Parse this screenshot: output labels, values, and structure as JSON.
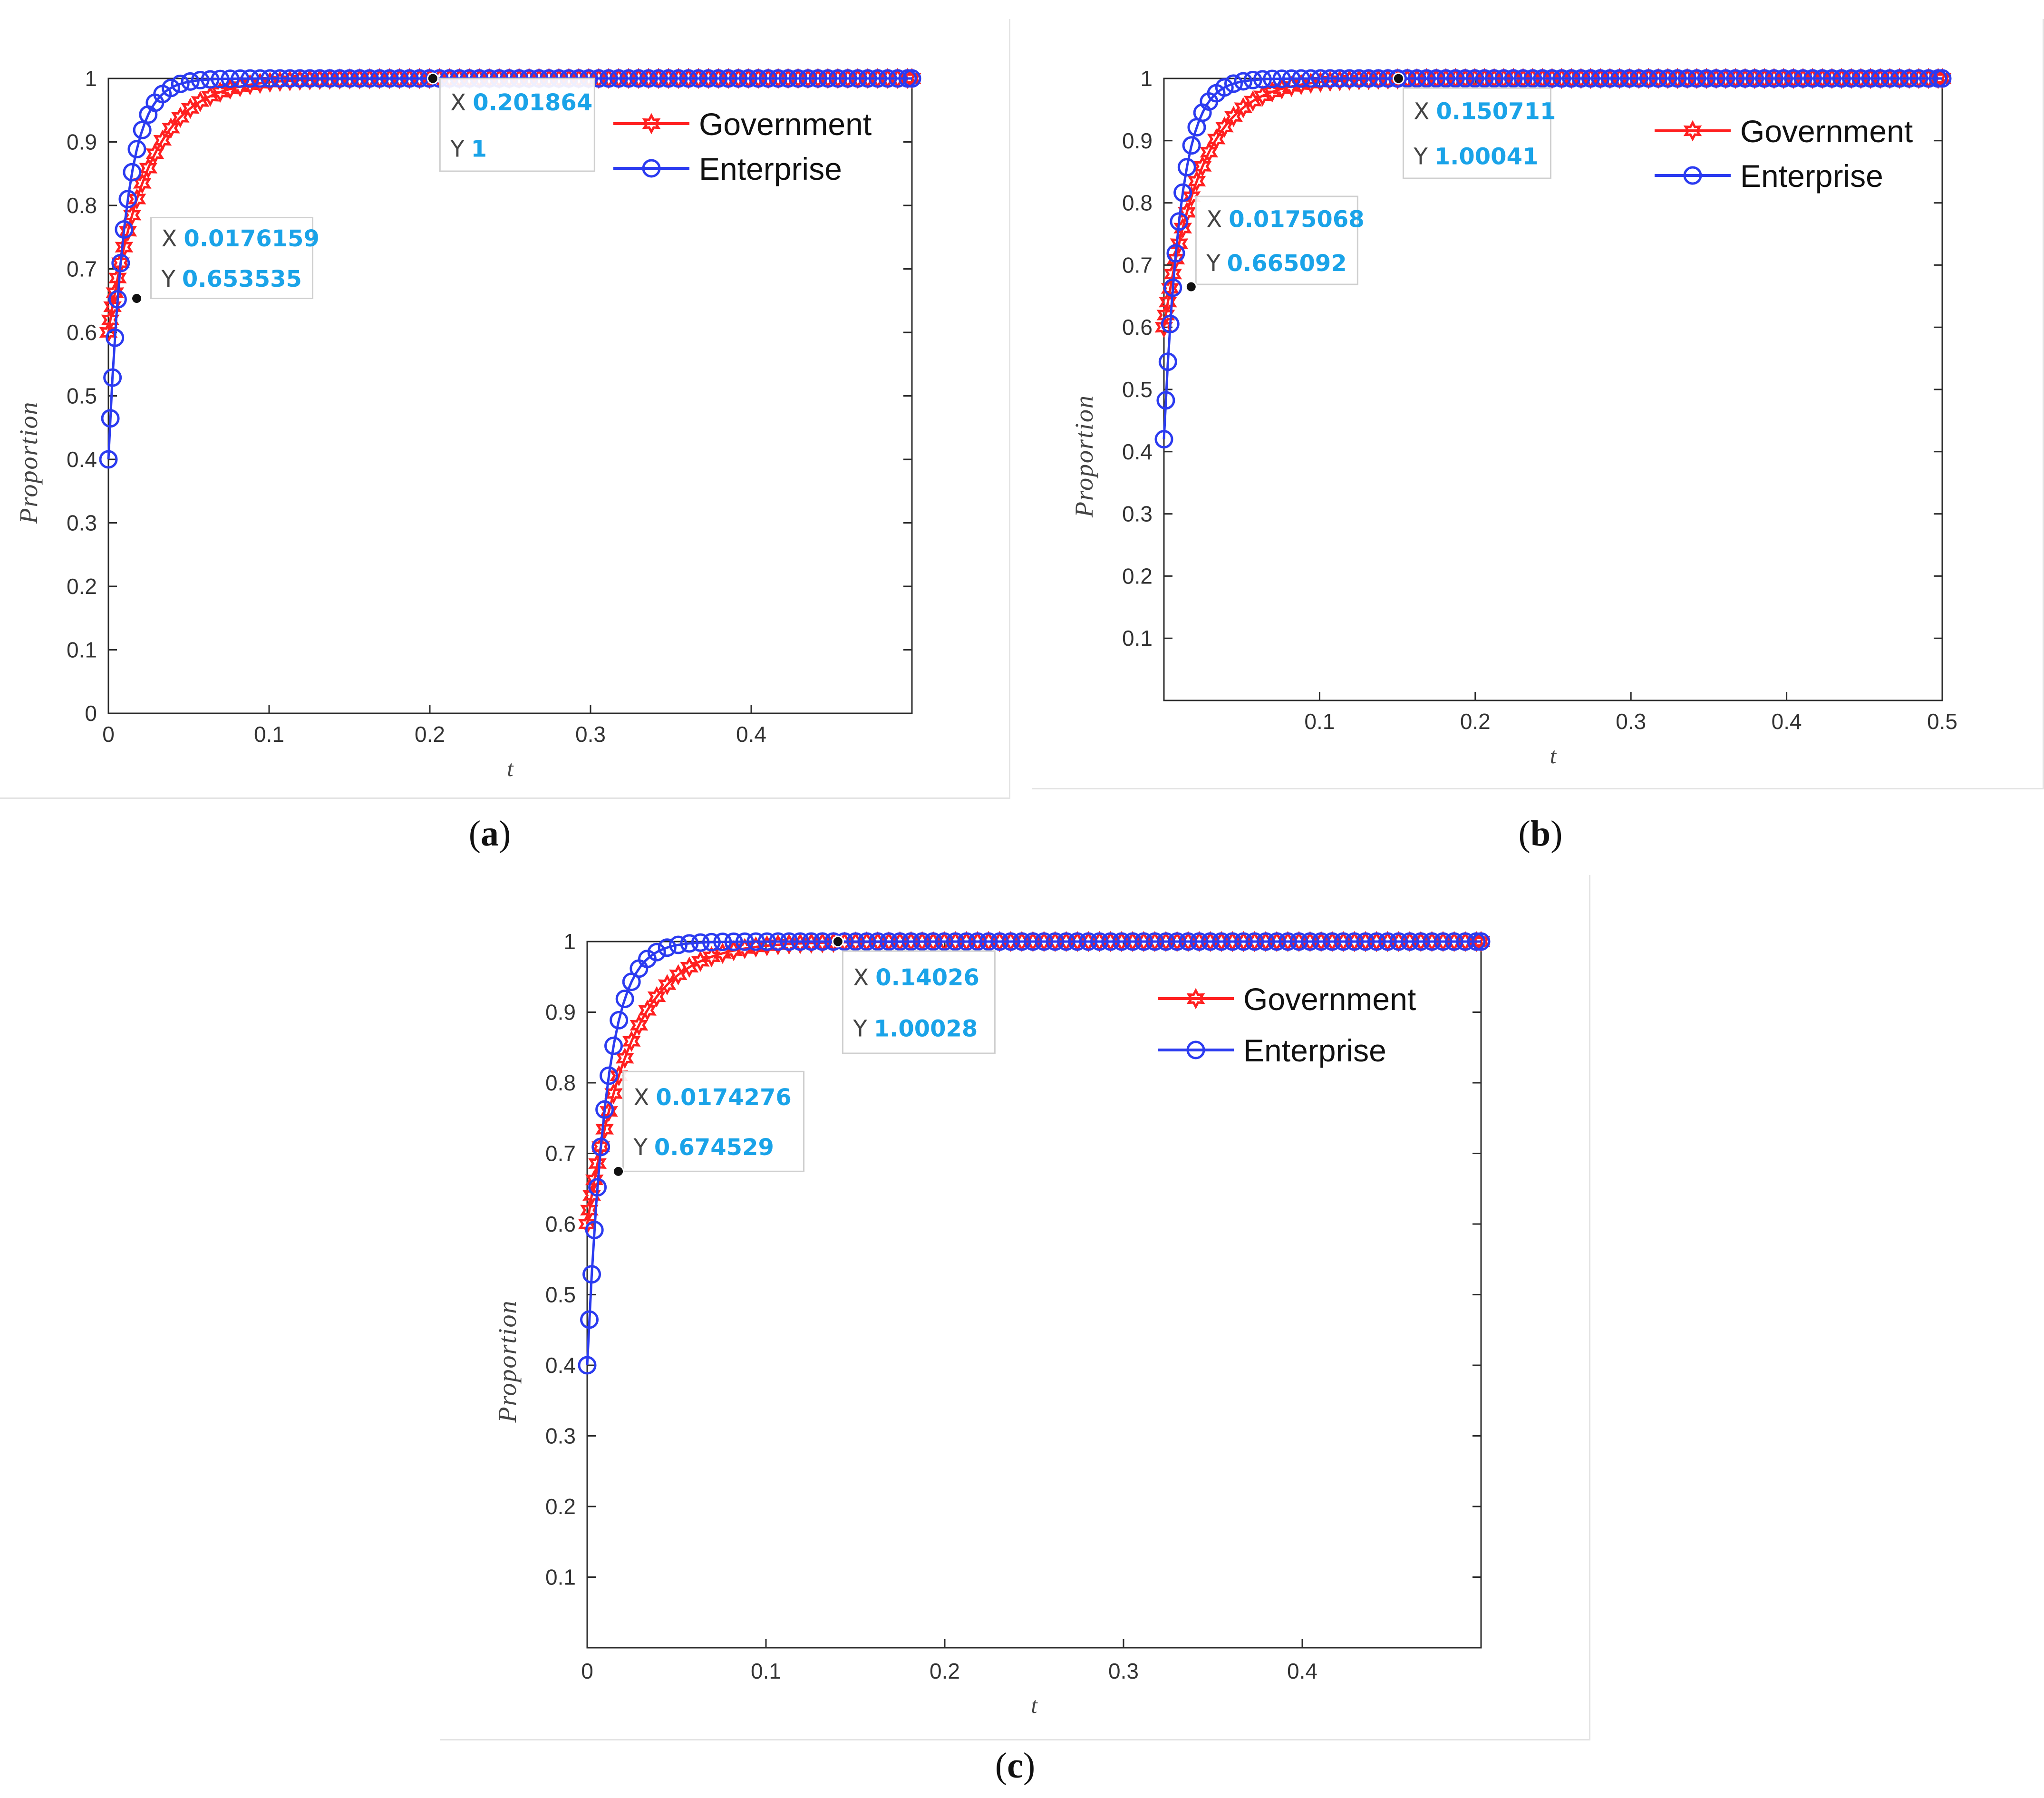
{
  "panels": [
    {
      "id": "a",
      "caption": "a",
      "chart_data": {
        "type": "line",
        "xlabel": "t",
        "ylabel": "Proportion",
        "xlim": [
          0,
          0.5
        ],
        "ylim": [
          0,
          1
        ],
        "xticks": [
          "0",
          "0.1",
          "0.2",
          "0.3",
          "0.4"
        ],
        "yticks": [
          "0",
          "0.1",
          "0.2",
          "0.3",
          "0.4",
          "0.5",
          "0.6",
          "0.7",
          "0.8",
          "0.9",
          "1"
        ],
        "legend_position": "top-right",
        "series": [
          {
            "name": "Government",
            "color": "#ff2020",
            "marker": "hexagram",
            "y0": 0.6,
            "rate": 42
          },
          {
            "name": "Enterprise",
            "color": "#2b3bf0",
            "marker": "circle",
            "y0": 0.4,
            "rate": 95
          }
        ],
        "datatips": [
          {
            "x_label": "X",
            "x": "0.0176159",
            "y_label": "Y",
            "y": "0.653535",
            "px": 0.0176159,
            "py": 0.653535
          },
          {
            "x_label": "X",
            "x": "0.201864",
            "y_label": "Y",
            "y": "1",
            "px": 0.201864,
            "py": 1
          }
        ]
      }
    },
    {
      "id": "b",
      "caption": "b",
      "chart_data": {
        "type": "line",
        "xlabel": "t",
        "ylabel": "Proportion",
        "xlim": [
          0,
          0.5
        ],
        "ylim": [
          0,
          1
        ],
        "xticks": [
          "0.1",
          "0.2",
          "0.3",
          "0.4",
          "0.5"
        ],
        "yticks": [
          "0.1",
          "0.2",
          "0.3",
          "0.4",
          "0.5",
          "0.6",
          "0.7",
          "0.8",
          "0.9",
          "1"
        ],
        "legend_position": "top-right",
        "series": [
          {
            "name": "Government",
            "color": "#ff2020",
            "marker": "hexagram",
            "y0": 0.6,
            "rate": 42
          },
          {
            "name": "Enterprise",
            "color": "#2b3bf0",
            "marker": "circle",
            "y0": 0.42,
            "rate": 95
          }
        ],
        "datatips": [
          {
            "x_label": "X",
            "x": "0.0175068",
            "y_label": "Y",
            "y": "0.665092",
            "px": 0.0175068,
            "py": 0.665092
          },
          {
            "x_label": "X",
            "x": "0.150711",
            "y_label": "Y",
            "y": "1.00041",
            "px": 0.150711,
            "py": 1.0
          }
        ]
      }
    },
    {
      "id": "c",
      "caption": "c",
      "chart_data": {
        "type": "line",
        "xlabel": "t",
        "ylabel": "Proportion",
        "xlim": [
          0,
          0.5
        ],
        "ylim": [
          0,
          1
        ],
        "xticks": [
          "0",
          "0.1",
          "0.2",
          "0.3",
          "0.4"
        ],
        "yticks": [
          "0.1",
          "0.2",
          "0.3",
          "0.4",
          "0.5",
          "0.6",
          "0.7",
          "0.8",
          "0.9",
          "1"
        ],
        "legend_position": "top-right",
        "series": [
          {
            "name": "Government",
            "color": "#ff2020",
            "marker": "hexagram",
            "y0": 0.6,
            "rate": 42
          },
          {
            "name": "Enterprise",
            "color": "#2b3bf0",
            "marker": "circle",
            "y0": 0.4,
            "rate": 95
          }
        ],
        "datatips": [
          {
            "x_label": "X",
            "x": "0.0174276",
            "y_label": "Y",
            "y": "0.674529",
            "px": 0.0174276,
            "py": 0.674529
          },
          {
            "x_label": "X",
            "x": "0.14026",
            "y_label": "Y",
            "y": "1.00028",
            "px": 0.14026,
            "py": 1.0
          }
        ]
      }
    }
  ]
}
